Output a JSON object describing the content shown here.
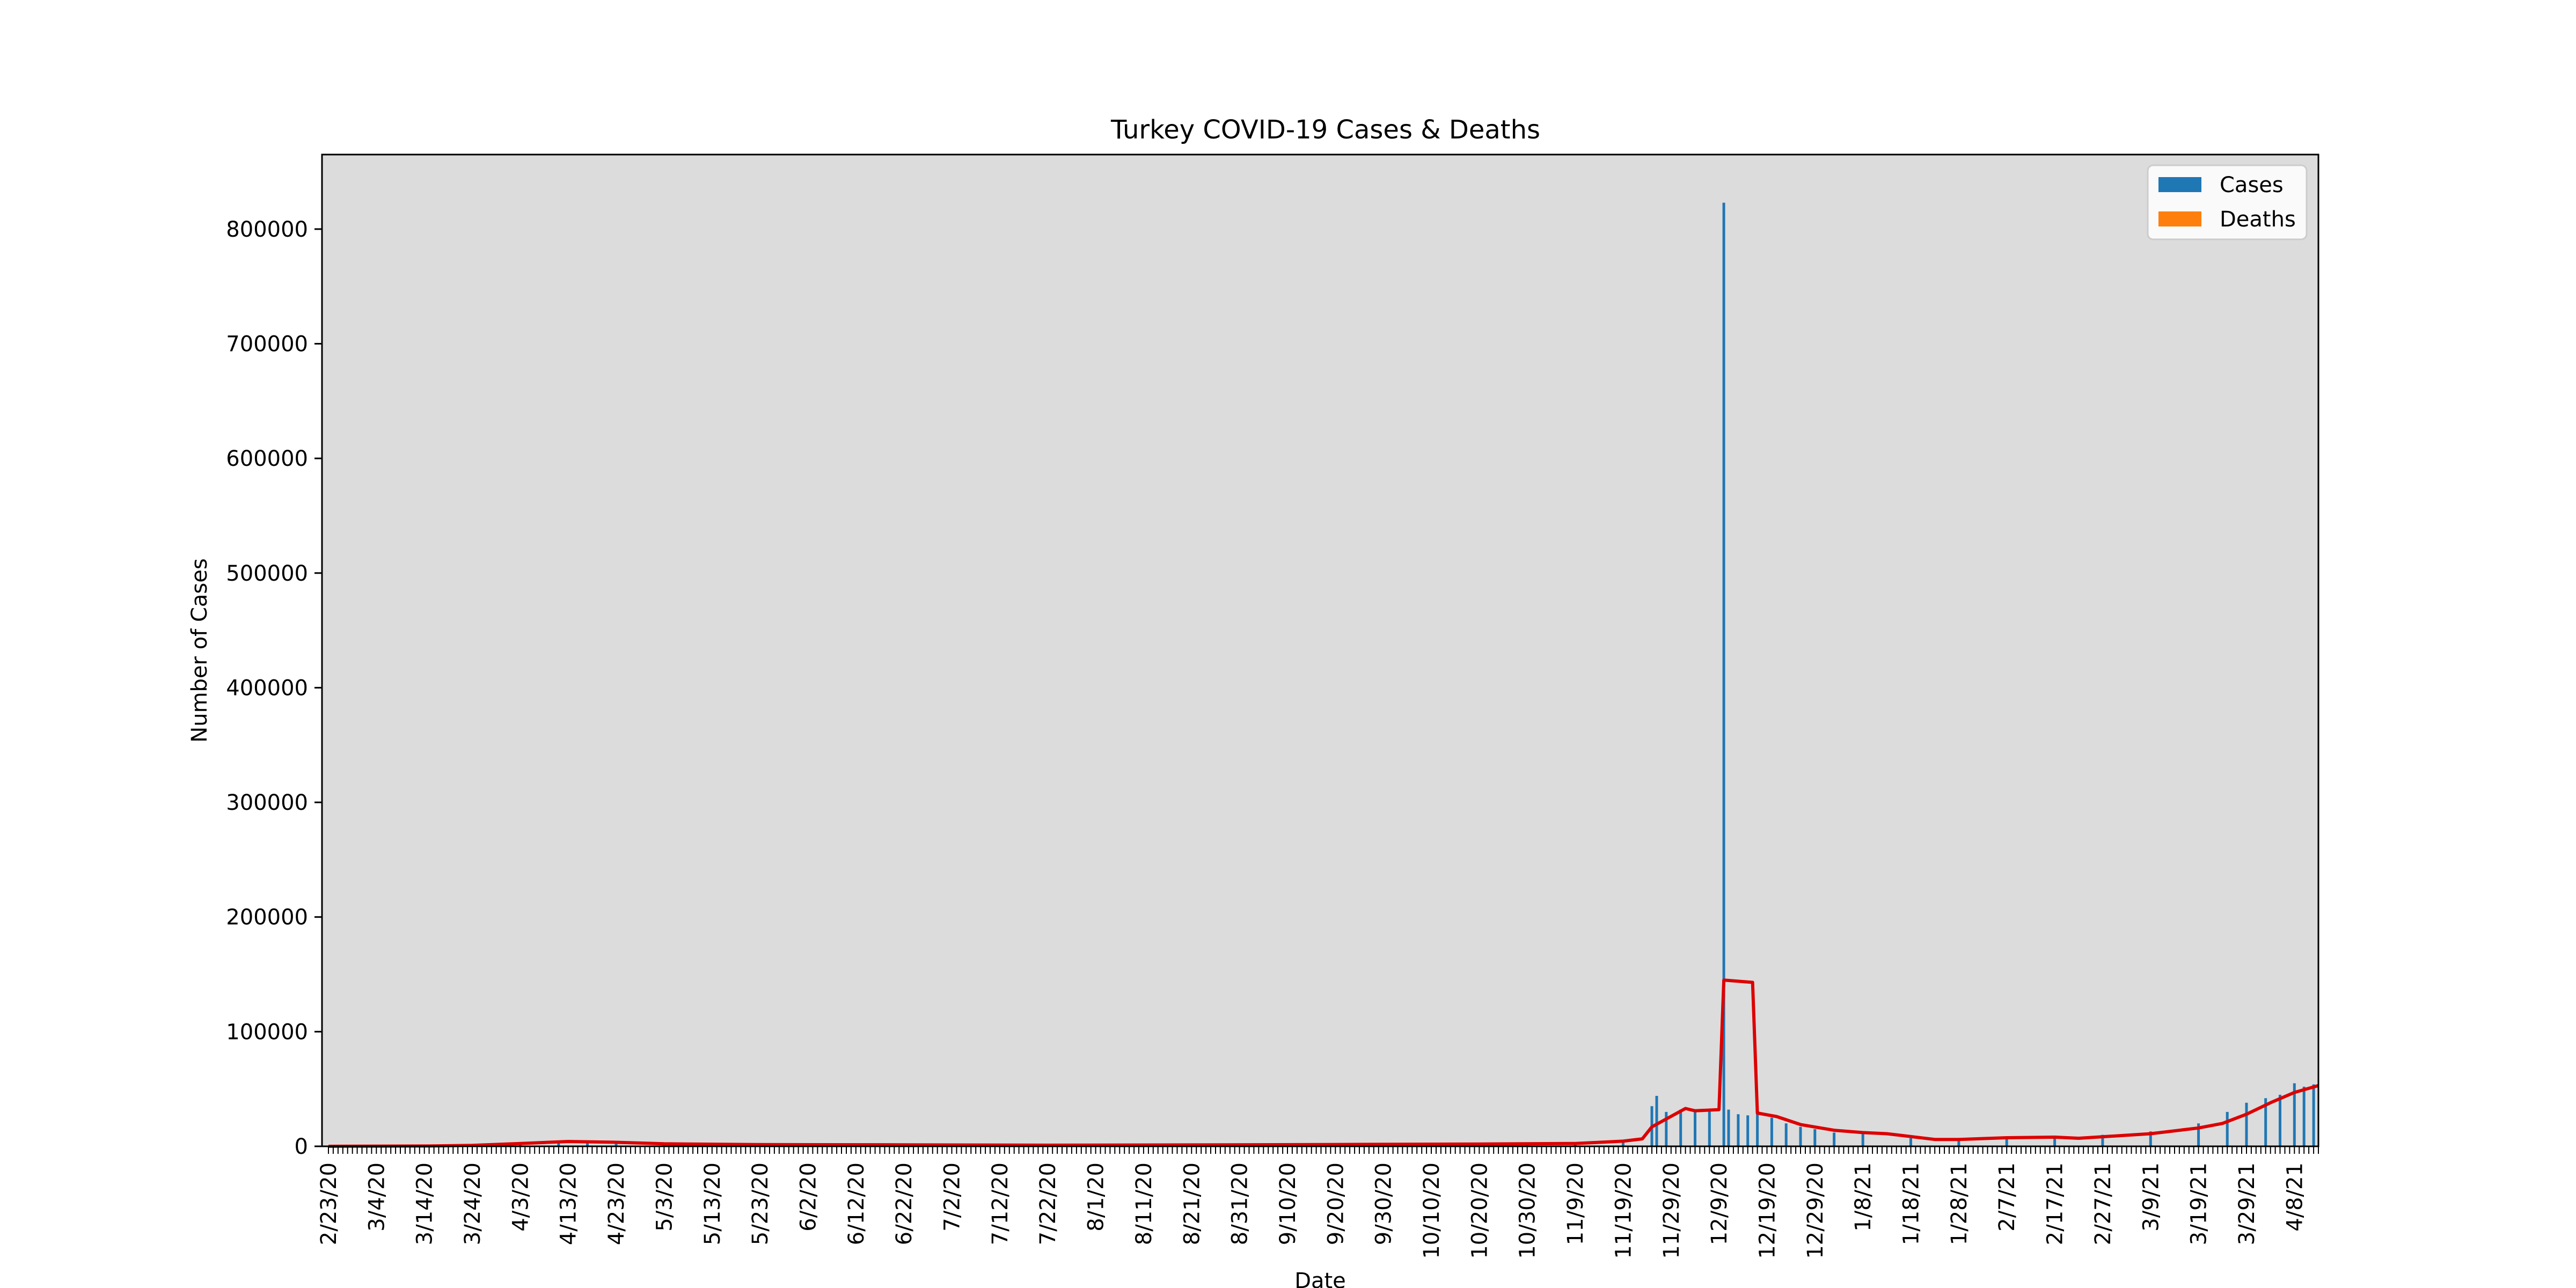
{
  "chart_data": {
    "type": "bar",
    "title": "Turkey COVID-19 Cases & Deaths",
    "xlabel": "Date",
    "ylabel": "Number of Cases",
    "ylim": [
      0,
      865000
    ],
    "yticks": [
      0,
      100000,
      200000,
      300000,
      400000,
      500000,
      600000,
      700000,
      800000
    ],
    "ytick_labels": [
      "0",
      "100000",
      "200000",
      "300000",
      "400000",
      "500000",
      "600000",
      "700000",
      "800000"
    ],
    "x_start": "2020-02-23",
    "x_end": "2021-04-13",
    "xtick_labels": [
      "2/23/20",
      "3/4/20",
      "3/14/20",
      "3/24/20",
      "4/3/20",
      "4/13/20",
      "4/23/20",
      "5/3/20",
      "5/13/20",
      "5/23/20",
      "6/2/20",
      "6/12/20",
      "6/22/20",
      "7/2/20",
      "7/12/20",
      "7/22/20",
      "8/1/20",
      "8/11/20",
      "8/21/20",
      "8/31/20",
      "9/10/20",
      "9/20/20",
      "9/30/20",
      "10/10/20",
      "10/20/20",
      "10/30/20",
      "11/9/20",
      "11/19/20",
      "11/29/20",
      "12/9/20",
      "12/19/20",
      "12/29/20",
      "1/8/21",
      "1/18/21",
      "1/28/21",
      "2/7/21",
      "2/17/21",
      "2/27/21",
      "3/9/21",
      "3/19/21",
      "3/29/21",
      "4/8/21"
    ],
    "grid": false,
    "legend": {
      "position": "top-right",
      "entries": [
        "Cases",
        "Deaths"
      ]
    },
    "colors": {
      "cases": "#1f77b4",
      "deaths": "#ff7f0e",
      "trend": "#dd0000",
      "background": "#dcdcdc"
    },
    "series": [
      {
        "name": "Cases",
        "color": "#1f77b4",
        "points": [
          [
            "2020-03-11",
            1
          ],
          [
            "2020-03-20",
            600
          ],
          [
            "2020-03-27",
            2000
          ],
          [
            "2020-04-03",
            3000
          ],
          [
            "2020-04-11",
            5000
          ],
          [
            "2020-04-17",
            4500
          ],
          [
            "2020-04-23",
            4000
          ],
          [
            "2020-05-03",
            2000
          ],
          [
            "2020-05-13",
            1600
          ],
          [
            "2020-05-23",
            1000
          ],
          [
            "2020-06-12",
            1500
          ],
          [
            "2020-06-22",
            1200
          ],
          [
            "2020-07-12",
            1000
          ],
          [
            "2020-08-11",
            1200
          ],
          [
            "2020-09-10",
            1600
          ],
          [
            "2020-10-10",
            1700
          ],
          [
            "2020-10-30",
            2300
          ],
          [
            "2020-11-09",
            2500
          ],
          [
            "2020-11-19",
            4000
          ],
          [
            "2020-11-25",
            35000
          ],
          [
            "2020-11-26",
            44000
          ],
          [
            "2020-11-28",
            30000
          ],
          [
            "2020-12-01",
            32000
          ],
          [
            "2020-12-04",
            30000
          ],
          [
            "2020-12-07",
            31000
          ],
          [
            "2020-12-10",
            823000
          ],
          [
            "2020-12-11",
            32000
          ],
          [
            "2020-12-13",
            28000
          ],
          [
            "2020-12-15",
            27000
          ],
          [
            "2020-12-17",
            30000
          ],
          [
            "2020-12-20",
            25000
          ],
          [
            "2020-12-23",
            20000
          ],
          [
            "2020-12-26",
            17000
          ],
          [
            "2020-12-29",
            15000
          ],
          [
            "2021-01-02",
            12000
          ],
          [
            "2021-01-08",
            11000
          ],
          [
            "2021-01-18",
            7000
          ],
          [
            "2021-01-28",
            6500
          ],
          [
            "2021-02-07",
            7500
          ],
          [
            "2021-02-17",
            7500
          ],
          [
            "2021-02-27",
            10000
          ],
          [
            "2021-03-09",
            13000
          ],
          [
            "2021-03-19",
            20000
          ],
          [
            "2021-03-25",
            30000
          ],
          [
            "2021-03-29",
            38000
          ],
          [
            "2021-04-02",
            42000
          ],
          [
            "2021-04-05",
            45000
          ],
          [
            "2021-04-08",
            55000
          ],
          [
            "2021-04-10",
            52000
          ],
          [
            "2021-04-12",
            54000
          ]
        ]
      },
      {
        "name": "Deaths",
        "color": "#ff7f0e",
        "points": [
          [
            "2020-03-24",
            10
          ],
          [
            "2020-04-13",
            100
          ],
          [
            "2020-05-03",
            70
          ],
          [
            "2020-06-22",
            20
          ],
          [
            "2020-09-10",
            60
          ],
          [
            "2020-11-25",
            150
          ],
          [
            "2020-12-10",
            230
          ],
          [
            "2021-01-08",
            180
          ],
          [
            "2021-02-07",
            80
          ],
          [
            "2021-03-29",
            150
          ],
          [
            "2021-04-12",
            250
          ]
        ]
      }
    ],
    "trend_line": {
      "color": "#dd0000",
      "points": [
        [
          "2020-02-23",
          0
        ],
        [
          "2020-03-15",
          300
        ],
        [
          "2020-03-24",
          800
        ],
        [
          "2020-04-03",
          2500
        ],
        [
          "2020-04-13",
          4200
        ],
        [
          "2020-04-23",
          3500
        ],
        [
          "2020-05-03",
          2200
        ],
        [
          "2020-05-23",
          1500
        ],
        [
          "2020-06-22",
          1300
        ],
        [
          "2020-07-22",
          1000
        ],
        [
          "2020-08-21",
          1200
        ],
        [
          "2020-09-20",
          1600
        ],
        [
          "2020-10-20",
          2000
        ],
        [
          "2020-11-09",
          2500
        ],
        [
          "2020-11-19",
          4500
        ],
        [
          "2020-11-23",
          6500
        ],
        [
          "2020-11-25",
          17000
        ],
        [
          "2020-12-02",
          33000
        ],
        [
          "2020-12-04",
          31000
        ],
        [
          "2020-12-09",
          32000
        ],
        [
          "2020-12-10",
          145000
        ],
        [
          "2020-12-16",
          143000
        ],
        [
          "2020-12-17",
          29000
        ],
        [
          "2020-12-21",
          26000
        ],
        [
          "2020-12-26",
          19000
        ],
        [
          "2021-01-02",
          14000
        ],
        [
          "2021-01-08",
          12000
        ],
        [
          "2021-01-13",
          11000
        ],
        [
          "2021-01-18",
          8500
        ],
        [
          "2021-01-23",
          6000
        ],
        [
          "2021-01-28",
          6000
        ],
        [
          "2021-02-07",
          7500
        ],
        [
          "2021-02-17",
          8000
        ],
        [
          "2021-02-22",
          7000
        ],
        [
          "2021-03-09",
          11000
        ],
        [
          "2021-03-19",
          16000
        ],
        [
          "2021-03-24",
          20000
        ],
        [
          "2021-03-29",
          28000
        ],
        [
          "2021-04-03",
          38000
        ],
        [
          "2021-04-08",
          47000
        ],
        [
          "2021-04-13",
          53000
        ]
      ]
    }
  }
}
